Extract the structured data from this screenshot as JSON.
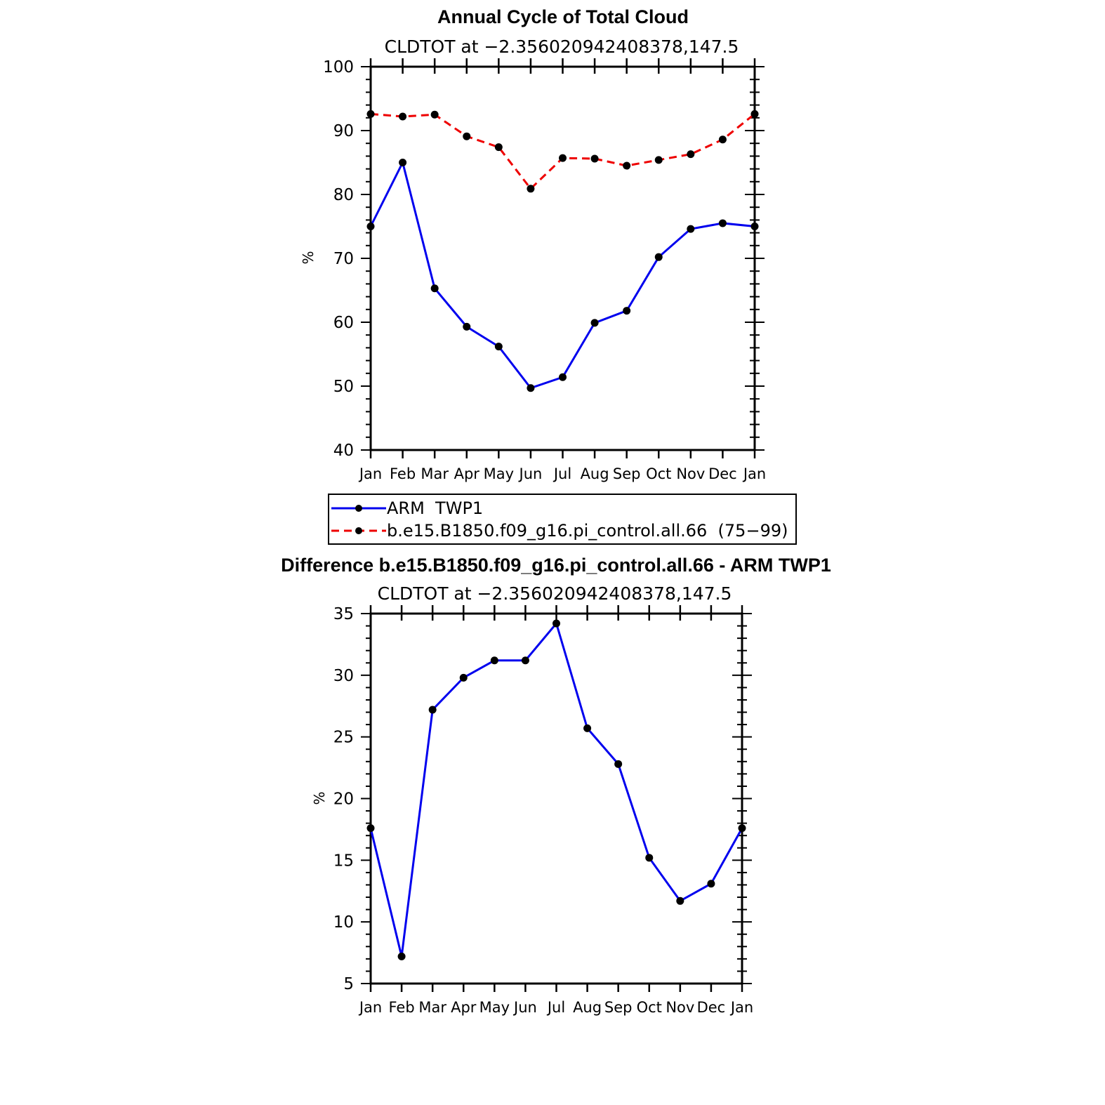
{
  "chart_data": [
    {
      "type": "line",
      "title": "Annual Cycle of Total Cloud",
      "subtitle": "CLDTOT at −2.356020942408378,147.5",
      "xlabel": "",
      "ylabel": "%",
      "categories": [
        "Jan",
        "Feb",
        "Mar",
        "Apr",
        "May",
        "Jun",
        "Jul",
        "Aug",
        "Sep",
        "Oct",
        "Nov",
        "Dec",
        "Jan"
      ],
      "ylim": [
        40,
        100
      ],
      "yticks": [
        40,
        50,
        60,
        70,
        80,
        90,
        100
      ],
      "grid": false,
      "legend_position": "bottom",
      "series": [
        {
          "name": "ARM  TWP1",
          "color": "#0000ee",
          "dash": "solid",
          "values": [
            75.0,
            85.0,
            65.3,
            59.3,
            56.2,
            49.7,
            51.4,
            59.9,
            61.8,
            70.2,
            74.6,
            75.5,
            75.0
          ]
        },
        {
          "name": "b.e15.B1850.f09_g16.pi_control.all.66  (75−99)",
          "color": "#ee0000",
          "dash": "dashed",
          "values": [
            92.6,
            92.2,
            92.5,
            89.1,
            87.4,
            80.9,
            85.7,
            85.6,
            84.5,
            85.4,
            86.3,
            88.6,
            92.6
          ]
        }
      ]
    },
    {
      "type": "line",
      "title": "Difference b.e15.B1850.f09_g16.pi_control.all.66 - ARM TWP1",
      "subtitle": "CLDTOT at −2.356020942408378,147.5",
      "xlabel": "",
      "ylabel": "%",
      "categories": [
        "Jan",
        "Feb",
        "Mar",
        "Apr",
        "May",
        "Jun",
        "Jul",
        "Aug",
        "Sep",
        "Oct",
        "Nov",
        "Dec",
        "Jan"
      ],
      "ylim": [
        5,
        35
      ],
      "yticks": [
        5,
        10,
        15,
        20,
        25,
        30,
        35
      ],
      "grid": false,
      "series": [
        {
          "color": "#0000ee",
          "dash": "solid",
          "values": [
            17.6,
            7.2,
            27.2,
            29.8,
            31.2,
            31.2,
            34.2,
            25.7,
            22.8,
            15.2,
            11.7,
            13.1,
            17.6
          ]
        }
      ]
    }
  ]
}
